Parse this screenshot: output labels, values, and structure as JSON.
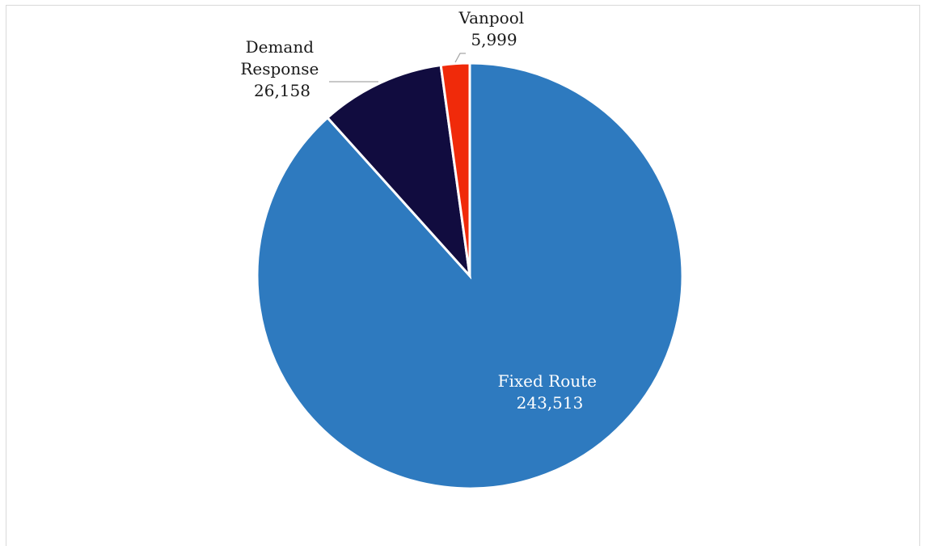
{
  "chart_data": {
    "type": "pie",
    "title": "",
    "categories": [
      "Fixed Route",
      "Demand Response",
      "Vanpool"
    ],
    "values": [
      243513,
      26158,
      5999
    ],
    "value_labels": [
      "243,513",
      "26,158",
      "5,999"
    ],
    "colors": [
      "#2e7abf",
      "#110c3f",
      "#f02a0a"
    ],
    "start_angle": "12 o'clock",
    "direction": "clockwise",
    "legend": "none",
    "label_colors": [
      "#ffffff",
      "#1a1a1a",
      "#1a1a1a"
    ]
  }
}
